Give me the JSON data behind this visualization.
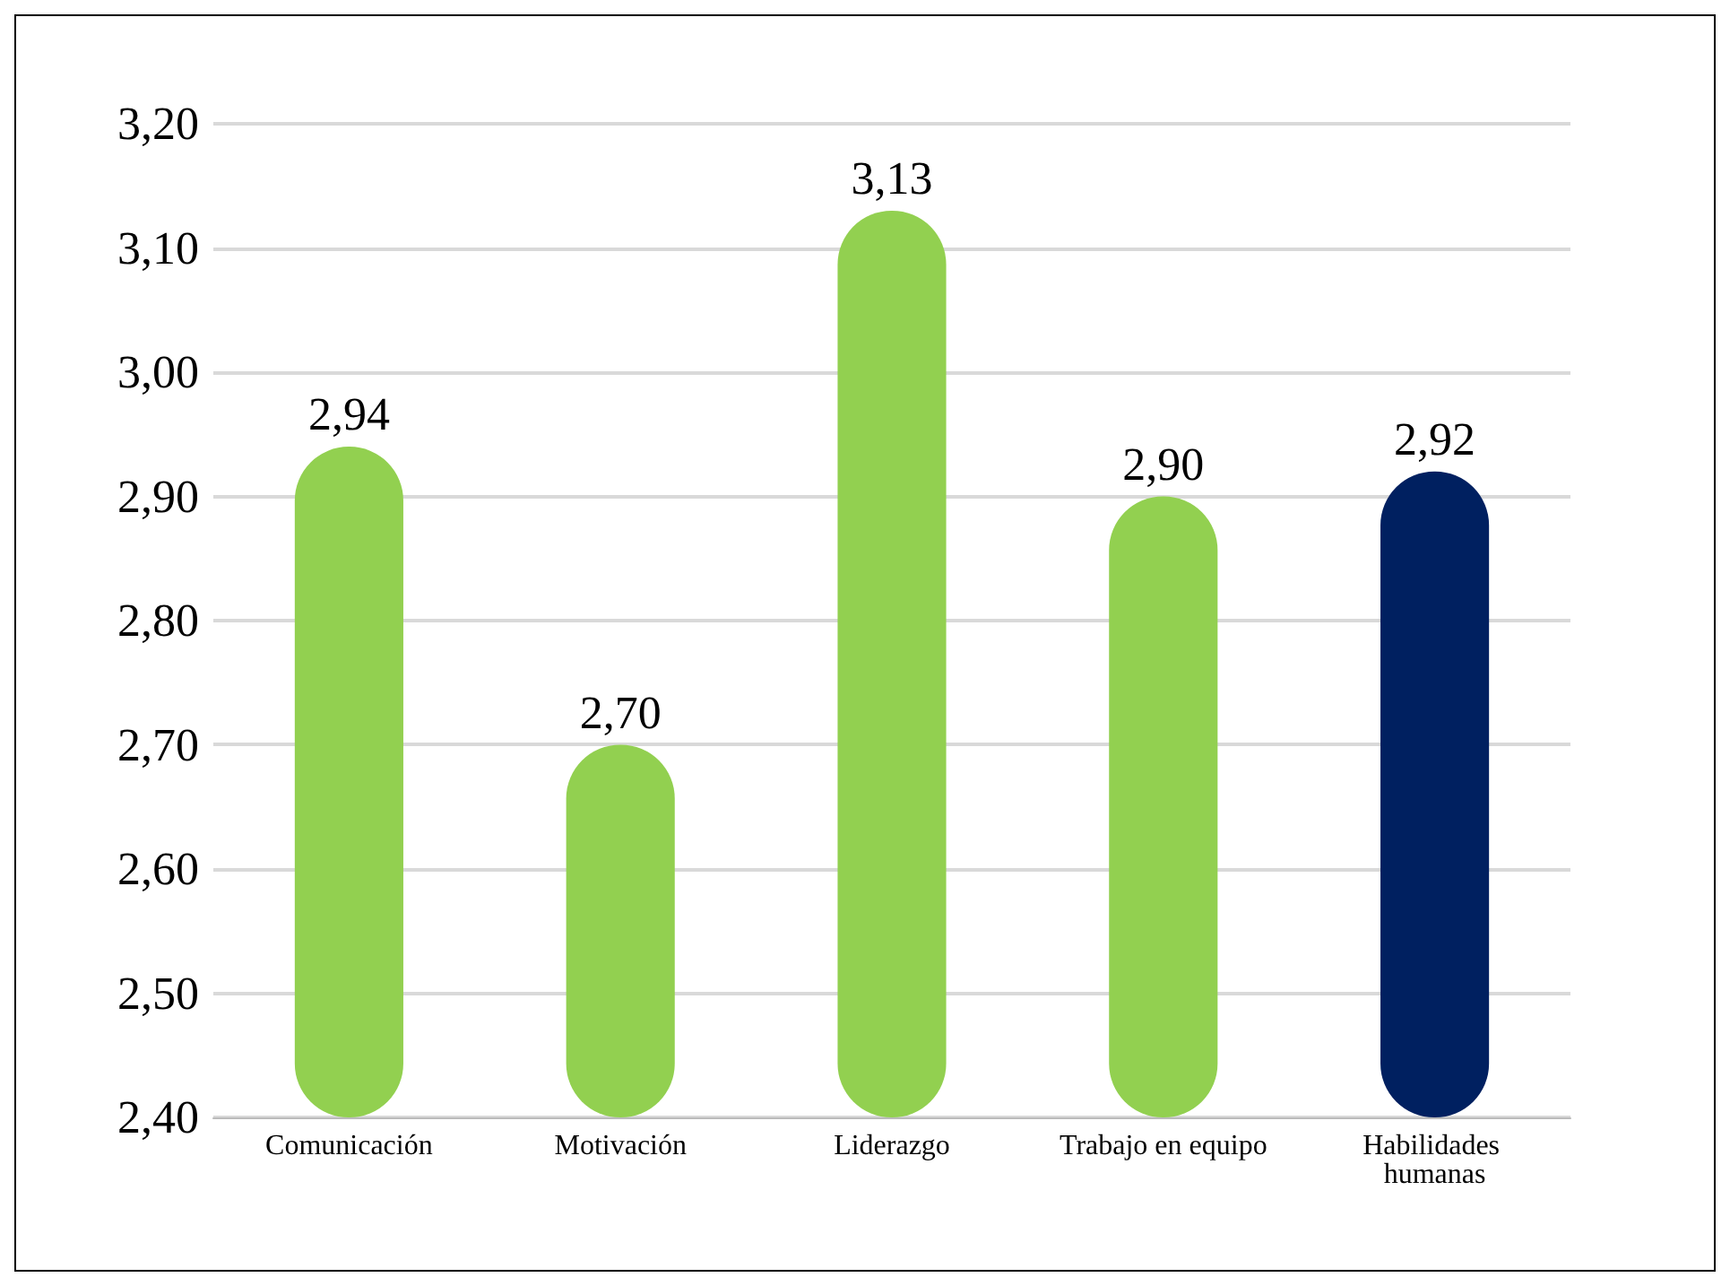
{
  "chart_data": {
    "type": "bar",
    "categories": [
      "Comunicación",
      "Motivación",
      "Liderazgo",
      "Trabajo en equipo",
      "Habilidades humanas"
    ],
    "values": [
      2.94,
      2.7,
      3.13,
      2.9,
      2.92
    ],
    "colors": [
      "#92d050",
      "#92d050",
      "#92d050",
      "#92d050",
      "#002060"
    ],
    "value_labels": [
      "2,94",
      "2,70",
      "3,13",
      "2,90",
      "2,92"
    ],
    "ylim": [
      2.4,
      3.2
    ],
    "yticks": [
      {
        "value": 2.4,
        "label": "2,40"
      },
      {
        "value": 2.5,
        "label": "2,50"
      },
      {
        "value": 2.6,
        "label": "2,60"
      },
      {
        "value": 2.7,
        "label": "2,70"
      },
      {
        "value": 2.8,
        "label": "2,80"
      },
      {
        "value": 2.9,
        "label": "2,90"
      },
      {
        "value": 3.0,
        "label": "3,00"
      },
      {
        "value": 3.1,
        "label": "3,10"
      },
      {
        "value": 3.2,
        "label": "3,20"
      }
    ],
    "grid": true
  }
}
